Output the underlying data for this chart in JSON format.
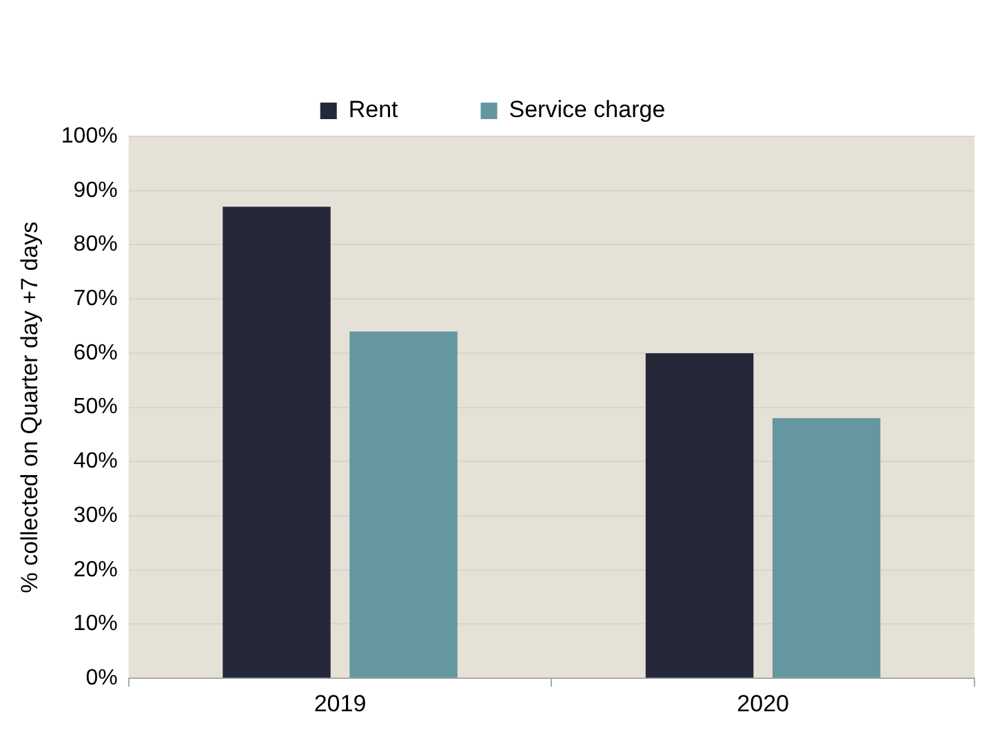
{
  "chart_data": {
    "type": "bar",
    "ylabel": "% collected on Quarter day +7 days",
    "categories": [
      "2019",
      "2020"
    ],
    "series": [
      {
        "name": "Rent",
        "color": "#252839",
        "values": [
          87,
          60
        ]
      },
      {
        "name": "Service charge",
        "color": "#6497a0",
        "values": [
          64,
          48
        ]
      }
    ],
    "ylim": [
      0,
      100
    ],
    "yticks": [
      {
        "value": 0,
        "label": "0%"
      },
      {
        "value": 10,
        "label": "10%"
      },
      {
        "value": 20,
        "label": "20%"
      },
      {
        "value": 30,
        "label": "30%"
      },
      {
        "value": 40,
        "label": "40%"
      },
      {
        "value": 50,
        "label": "50%"
      },
      {
        "value": 60,
        "label": "60%"
      },
      {
        "value": 70,
        "label": "70%"
      },
      {
        "value": 80,
        "label": "80%"
      },
      {
        "value": 90,
        "label": "90%"
      },
      {
        "value": 100,
        "label": "100%"
      }
    ],
    "grid": "y",
    "legend": "top"
  }
}
